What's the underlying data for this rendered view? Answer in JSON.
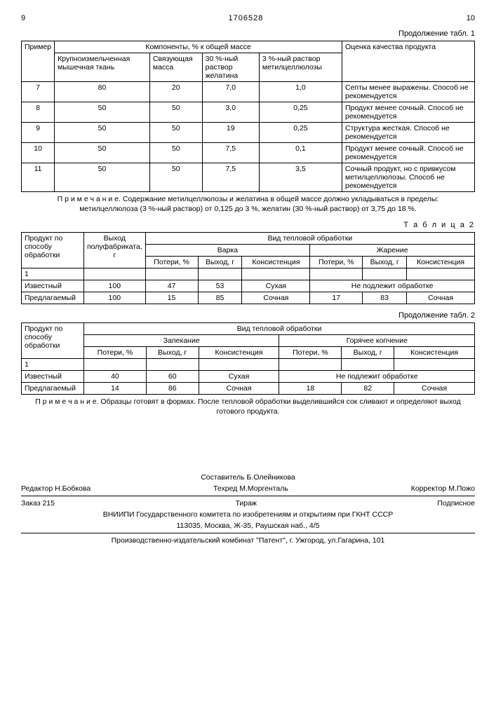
{
  "pageLeft": "9",
  "docNum": "1706528",
  "pageRight": "10",
  "cont1": "Продолжение табл. 1",
  "t1": {
    "h1": "Пример",
    "h2": "Компоненты, % к общей массе",
    "h3": "Оценка качества продукта",
    "c1": "Крупноизмельченная мышечная ткань",
    "c2": "Связующая масса",
    "c3": "30 %-ный раствор желатина",
    "c4": "3 %-ный раствор метилцеллюлозы",
    "rows": [
      {
        "n": "7",
        "a": "80",
        "b": "20",
        "c": "7,0",
        "d": "1,0",
        "e": "Септы менее выражены. Способ не рекомендуется"
      },
      {
        "n": "8",
        "a": "50",
        "b": "50",
        "c": "3,0",
        "d": "0,25",
        "e": "Продукт менее сочный. Способ не рекомендуется"
      },
      {
        "n": "9",
        "a": "50",
        "b": "50",
        "c": "19",
        "d": "0,25",
        "e": "Структура жесткая. Способ не рекомендуется"
      },
      {
        "n": "10",
        "a": "50",
        "b": "50",
        "c": "7,5",
        "d": "0,1",
        "e": "Продукт менее сочный. Способ не рекомендуется"
      },
      {
        "n": "11",
        "a": "50",
        "b": "50",
        "c": "7,5",
        "d": "3,5",
        "e": "Сочный продукт, но с привкусом метилцеллюлозы. Способ не рекомендуется"
      }
    ]
  },
  "note1": "П р и м е ч а н и е. Содержание метилцеллюлозы и желатина в общей массе должно укладываться в пределы: метилцеллюлоза (3 %-ный раствор) от 0,125 до 3 %, желатин (30 %-ный раствор) от 3,75 до 18 %.",
  "tbl2": "Т а б л и ц а 2",
  "t2": {
    "h1": "Продукт по способу обработки",
    "h2": "Выход полуфабриката, г",
    "h3": "Вид тепловой обработки",
    "s1": "Варка",
    "s2": "Жарение",
    "c1": "Потери, %",
    "c2": "Выход, г",
    "c3": "Консистенция",
    "c4": "Потери, %",
    "c5": "Выход, г",
    "c6": "Консистенция",
    "r1n": "1",
    "r2n": "Известный",
    "r2a": "100",
    "r2b": "47",
    "r2c": "53",
    "r2d": "Сухая",
    "r2e": "Не подлежит обработке",
    "r3n": "Предлагаемый",
    "r3a": "100",
    "r3b": "15",
    "r3c": "85",
    "r3d": "Сочная",
    "r3e": "17",
    "r3f": "83",
    "r3g": "Сочная"
  },
  "cont2": "Продолжение табл. 2",
  "t3": {
    "h1": "Продукт по способу обработки",
    "h2": "Вид тепловой обработки",
    "s1": "Запекание",
    "s2": "Горячее копчение",
    "c1": "Потери, %",
    "c2": "Выход, г",
    "c3": "Консистенция",
    "c4": "Потери, %",
    "c5": "Выход, г",
    "c6": "Консистенция",
    "r1n": "1",
    "r2n": "Известный",
    "r2a": "40",
    "r2b": "60",
    "r2c": "Сухая",
    "r2d": "Не подлежит обработке",
    "r3n": "Предлагаемый",
    "r3a": "14",
    "r3b": "86",
    "r3c": "Сочная",
    "r3d": "18",
    "r3e": "82",
    "r3f": "Сочная"
  },
  "note2": "П р и м е ч а н и е. Образцы готовят в формах. После тепловой обработки выделившийся сок сливают и определяют выход готового продукта.",
  "footer": {
    "compiler": "Составитель  Б.Олейникова",
    "editor": "Редактор  Н.Бобкова",
    "tech": "Техред М.Моргенталь",
    "corr": "Корректор  М.Пожо",
    "order": "Заказ 215",
    "tirage": "Тираж",
    "sub": "Подписное",
    "org": "ВНИИПИ Государственного комитета по изобретениям и открытиям при ГКНТ СССР",
    "addr": "113035, Москва, Ж-35, Раушская наб., 4/5",
    "pub": "Производственно-издательский комбинат \"Патент\", г. Ужгород, ул.Гагарина, 101"
  }
}
